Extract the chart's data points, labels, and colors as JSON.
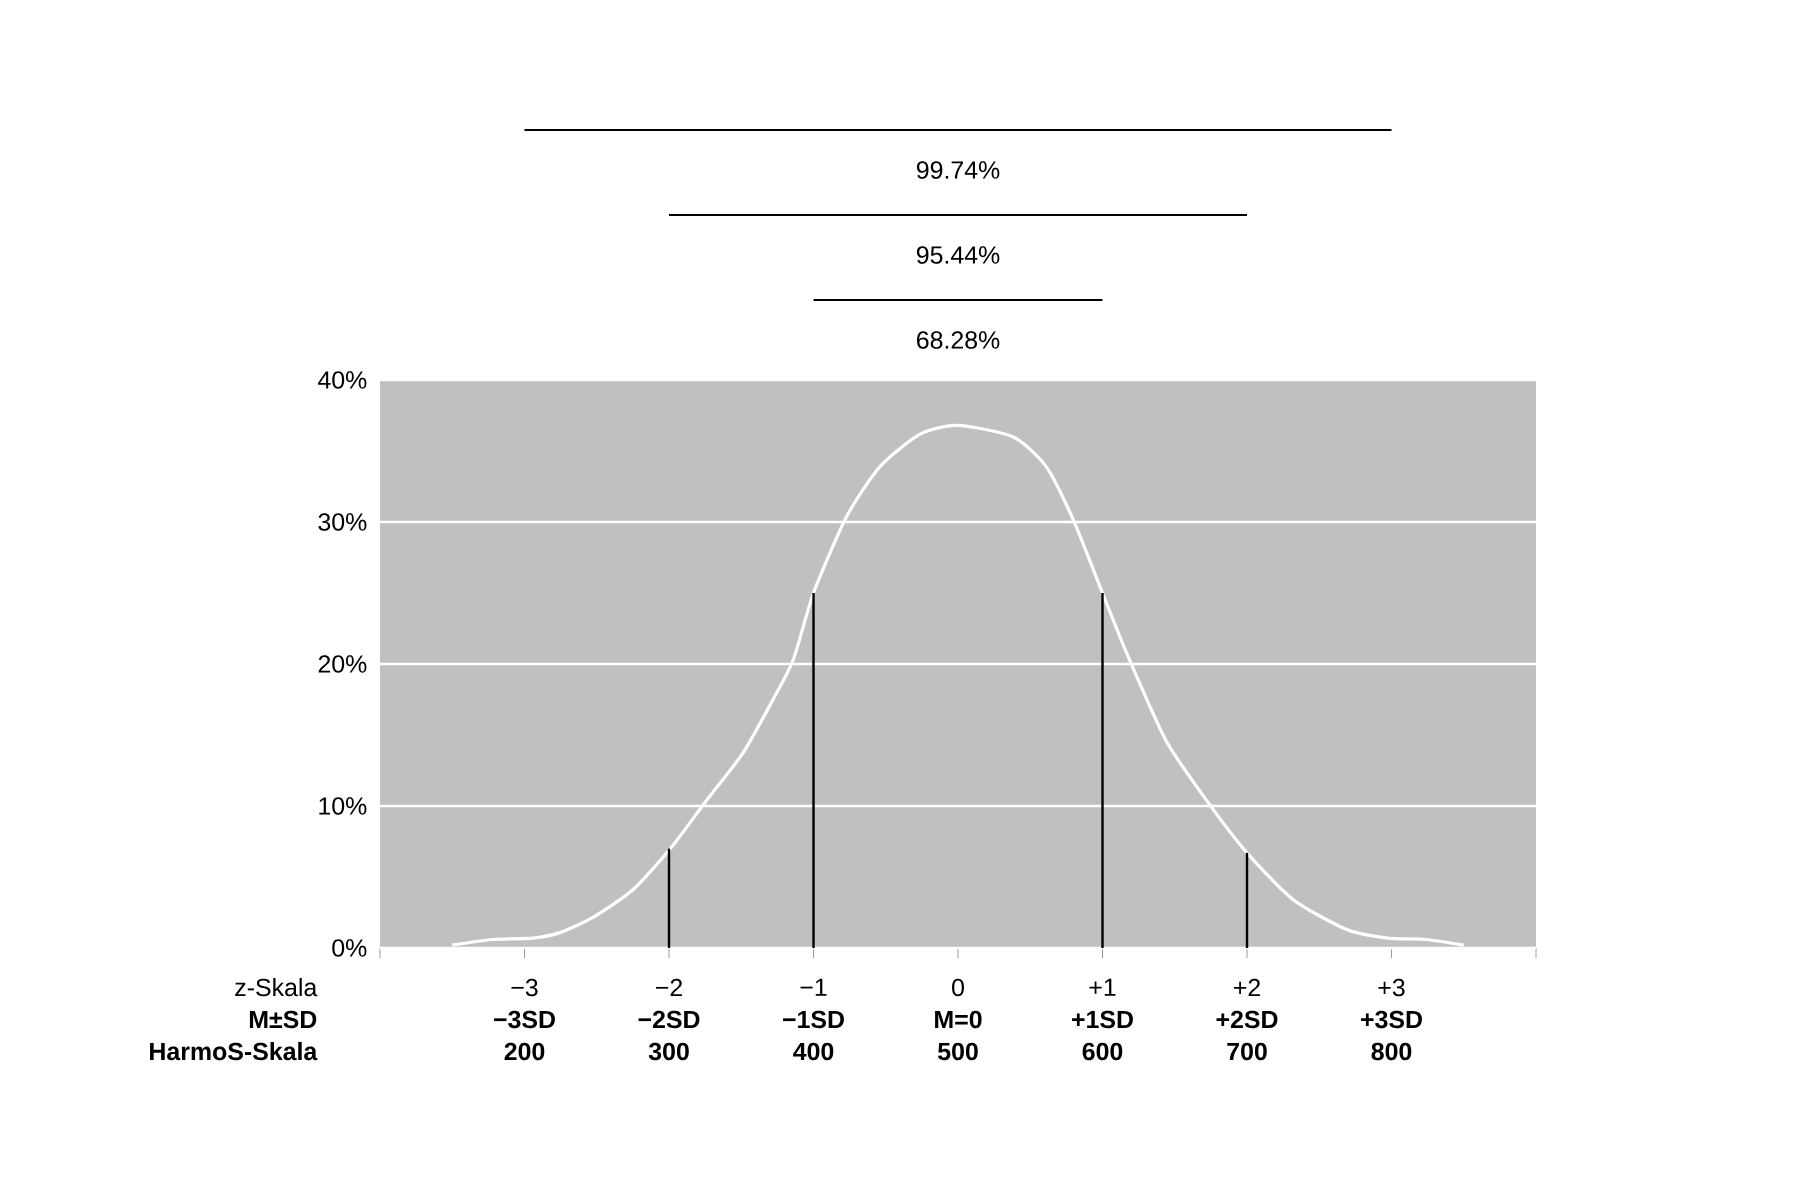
{
  "chart_data": {
    "type": "line",
    "xlim": [
      -4,
      4
    ],
    "ylim": [
      0,
      40
    ],
    "xticks": [
      {
        "value": -4,
        "label": null
      },
      {
        "value": -3,
        "label": "−3"
      },
      {
        "value": -2,
        "label": "−2"
      },
      {
        "value": -1,
        "label": "−1"
      },
      0,
      {
        "value": 1,
        "label": "+1"
      },
      {
        "value": 2,
        "label": "+2"
      },
      {
        "value": 3,
        "label": "+3"
      },
      {
        "value": 4,
        "label": null
      }
    ],
    "yticks": [
      {
        "value": 0,
        "label": "0%"
      },
      {
        "value": 10,
        "label": "10%"
      },
      {
        "value": 20,
        "label": "20%"
      },
      {
        "value": 30,
        "label": "30%"
      },
      {
        "value": 40,
        "label": "40%"
      }
    ],
    "grid": "y",
    "series": [
      {
        "color": "#ffffff",
        "x": [
          -3.5,
          -3.22,
          -2.94,
          -2.75,
          -2.52,
          -2.25,
          -1.99,
          -1.74,
          -1.49,
          -1.28,
          -1.14,
          -1.0,
          -0.77,
          -0.54,
          -0.26,
          0.0,
          0.38,
          0.61,
          0.8,
          1.0,
          1.17,
          1.44,
          1.72,
          2.0,
          2.32,
          2.69,
          2.97,
          3.24,
          3.5
        ],
        "values": [
          0.2,
          0.6,
          0.7,
          1.1,
          2.2,
          4.1,
          7.0,
          10.4,
          13.7,
          17.5,
          20.3,
          25.0,
          30.4,
          33.9,
          36.2,
          36.8,
          36.0,
          33.9,
          30.1,
          25.0,
          20.7,
          14.6,
          10.4,
          6.7,
          3.4,
          1.3,
          0.7,
          0.6,
          0.2
        ]
      },
      {
        "type": "bar",
        "color": "#000000",
        "x": [
          -2,
          -1,
          1,
          2
        ],
        "values": [
          7.0,
          25.0,
          25.0,
          6.7
        ]
      }
    ],
    "annotations": [
      "99.74%",
      "95.44%",
      "68.28%",
      "z-Skala",
      "M±SD",
      "HarmoS-Skala",
      "−3SD",
      "−2SD",
      "−1SD",
      "M=0",
      "+1SD",
      "+2SD",
      "+3SD",
      "200",
      "300",
      "400",
      "500",
      "600",
      "700",
      "800"
    ]
  }
}
